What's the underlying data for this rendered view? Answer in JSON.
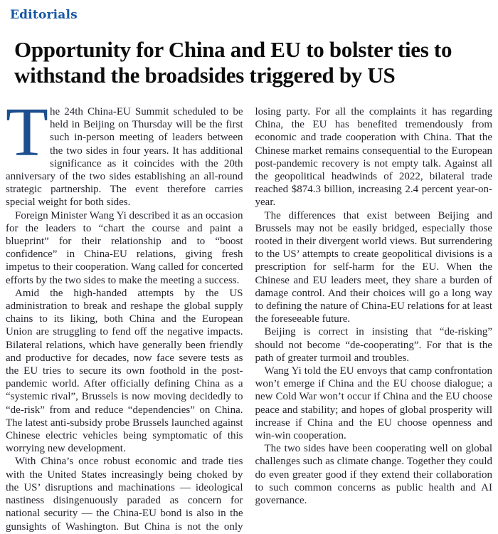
{
  "page": {
    "section_label": "Editorials",
    "headline": "Opportunity for China and EU to bolster ties to withstand the broadsides triggered by US"
  },
  "article": {
    "dropcap": "T",
    "paragraphs": [
      "he 24th China-EU Summit scheduled to be held in Beijing on Thursday will be the first such in-person meeting of leaders between the two sides in four years. It has additional significance as it coincides with the 20th anniversary of the two sides establishing an all-round strategic partnership. The event therefore carries special weight for both sides.",
      "Foreign Minister Wang Yi described it as an occasion for the leaders to “chart the course and paint a blueprint” for their relationship and to “boost confidence” in China-EU relations, giving fresh impetus to their cooperation. Wang called for concerted efforts by the two sides to make the meeting a success.",
      "Amid the high-handed attempts by the US administration to break and reshape the global supply chains to its liking, both China and the European Union are struggling to fend off the negative impacts. Bilateral relations, which have generally been friendly and productive for decades, now face severe tests as the EU tries to secure its own foothold in the post-pandemic world. After officially defining China as a “systemic rival”, Brussels is now moving decidedly to “de-risk” from and reduce “dependencies” on China. The latest anti-subsidy probe Brussels launched against Chinese electric vehicles being symptomatic of this worrying new development.",
      "With China’s once robust economic and trade ties with the United States increasingly being choked by the US’ disruptions and machinations — ideological nastiness disingenuously paraded as concern for national security — the China-EU bond is also in the gunsights of Washington. But China is not the only losing party. For all the complaints it has regarding China, the EU has benefited tremendously from economic and trade cooperation with China. That the Chinese market remains consequential to the European post-pandemic recovery is not empty talk. Against all the geopolitical headwinds of 2022, bilateral trade reached $874.3 billion, increasing 2.4 percent year-on-year.",
      "The differences that exist between Beijing and Brussels may not be easily bridged, especially those rooted in their divergent world views. But surrendering to the US’ attempts to create geopolitical divisions is a prescription for self-harm for the EU. When the Chinese and EU leaders meet, they share a burden of damage control. And their choices will go a long way to defining the nature of China-EU relations for at least the foreseeable future.",
      "Beijing is correct in insisting that “de-risking” should not become “de-cooperating”. For that is the path of greater turmoil and troubles.",
      "Wang Yi told the EU envoys that camp confrontation won’t emerge if China and the EU choose dialogue; a new Cold War won’t occur if China and the EU choose peace and stability; and hopes of global prosperity will increase if China and the EU choose openness and win-win cooperation.",
      "The two sides have been cooperating well on global challenges such as climate change. Together they could do even greater good if they extend their collaboration to such common concerns as public health and AI governance."
    ]
  },
  "colors": {
    "section_label": "#1659a4",
    "headline": "#0d0d0d",
    "body_text": "#24242e",
    "dropcap": "#1d4f8f"
  }
}
